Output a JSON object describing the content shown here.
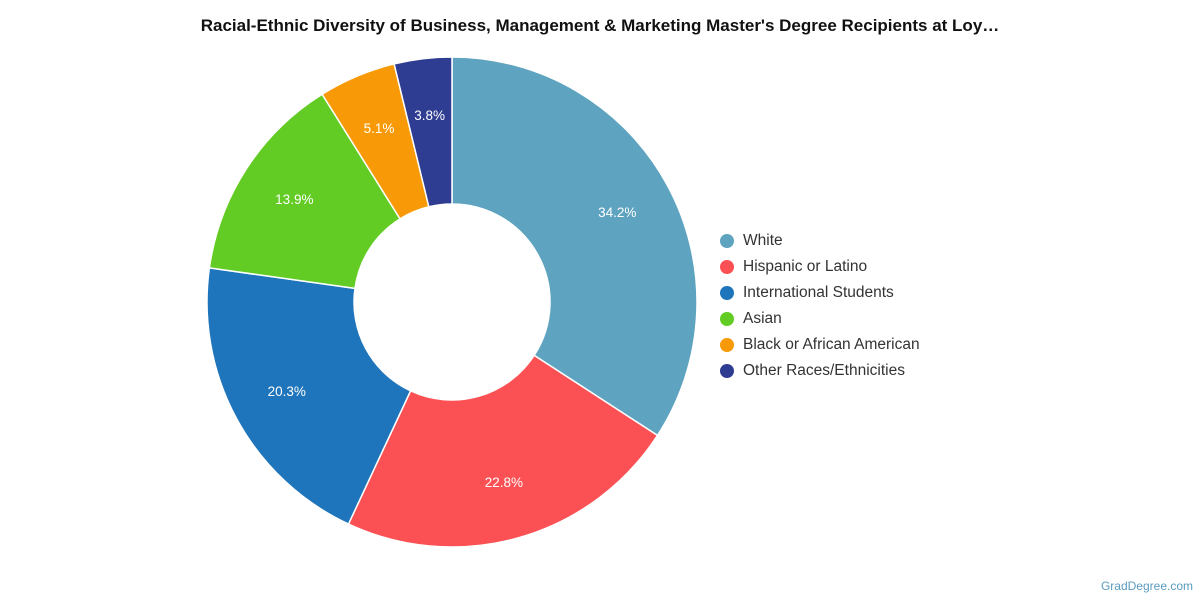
{
  "chart_data": {
    "type": "pie",
    "variant": "donut",
    "title": "Racial-Ethnic Diversity of Business, Management & Marketing Master's Degree Recipients at Loy…",
    "unit": "%",
    "legend_position": "right",
    "slices": [
      {
        "label": "White",
        "value": 34.2,
        "value_label": "34.2%",
        "color": "#5ea3bf"
      },
      {
        "label": "Hispanic or Latino",
        "value": 22.8,
        "value_label": "22.8%",
        "color": "#fc5154"
      },
      {
        "label": "International Students",
        "value": 20.3,
        "value_label": "20.3%",
        "color": "#1f75bb"
      },
      {
        "label": "Asian",
        "value": 13.9,
        "value_label": "13.9%",
        "color": "#62cc24"
      },
      {
        "label": "Black or African American",
        "value": 5.1,
        "value_label": "5.1%",
        "color": "#f89a07"
      },
      {
        "label": "Other Races/Ethnicities",
        "value": 3.8,
        "value_label": "3.8%",
        "color": "#2e3c91"
      }
    ]
  },
  "credit": "GradDegree.com"
}
